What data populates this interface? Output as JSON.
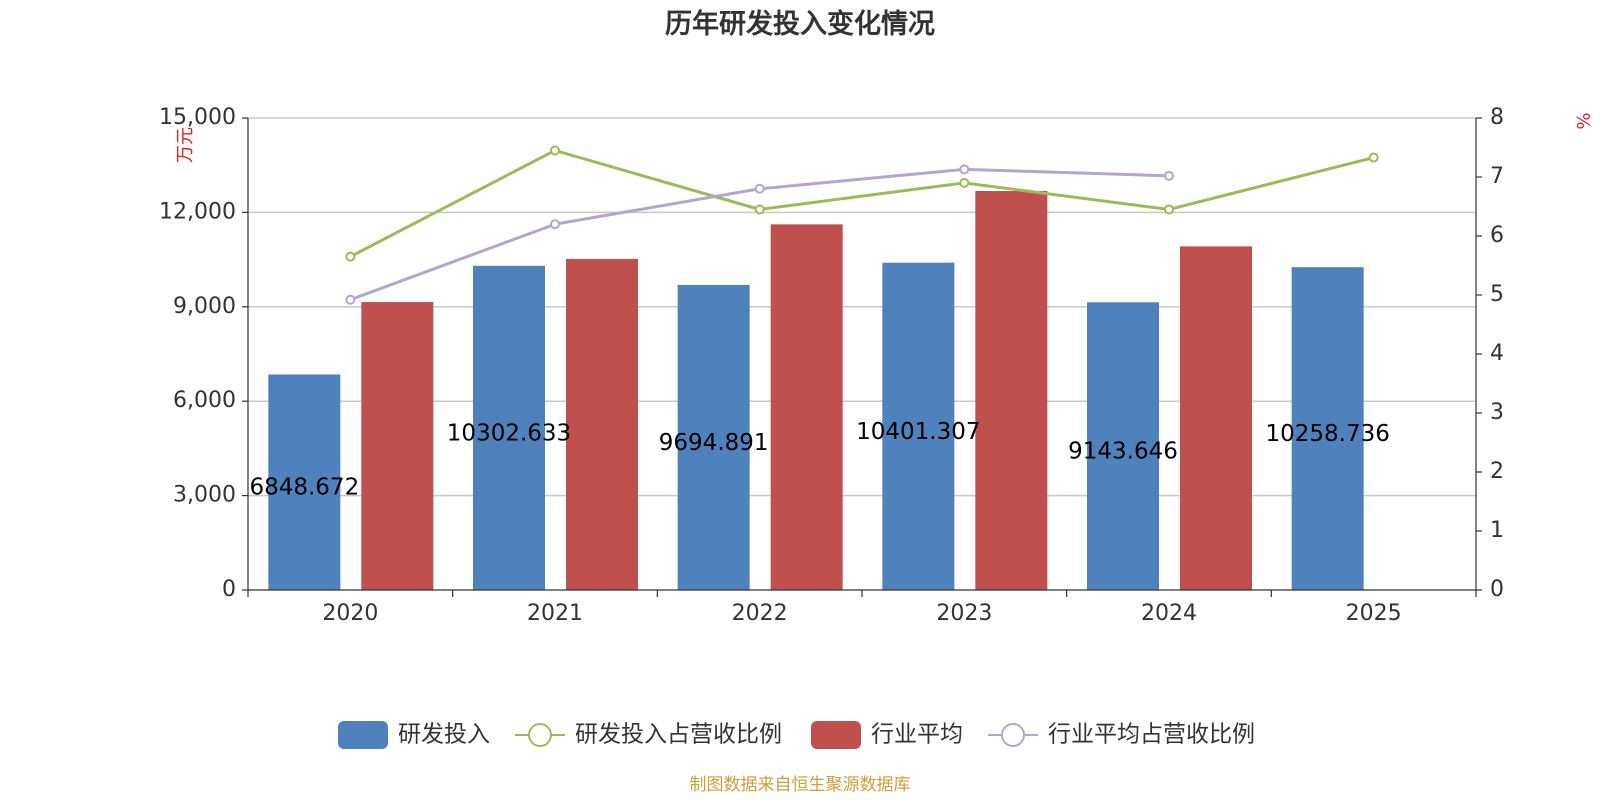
{
  "source": "制图数据来自恒生聚源数据库",
  "chart_data": {
    "type": "bar",
    "title": "历年研发投入变化情况",
    "categories": [
      "2020",
      "2021",
      "2022",
      "2023",
      "2024",
      "2025"
    ],
    "y_left": {
      "unit": "万元",
      "ticks": [
        "0",
        "3,000",
        "6,000",
        "9,000",
        "12,000",
        "15,000"
      ],
      "ylim": [
        0,
        15000
      ]
    },
    "y_right": {
      "unit": "%",
      "ticks": [
        "0",
        "1",
        "2",
        "3",
        "4",
        "5",
        "6",
        "7",
        "8"
      ],
      "ylim": [
        0,
        8
      ]
    },
    "grid": true,
    "legend_position": "bottom",
    "series": [
      {
        "name": "研发投入",
        "type": "bar",
        "axis": "left",
        "color": "#4f81bd",
        "values": [
          6848.672,
          10302.633,
          9694.891,
          10401.307,
          9143.646,
          10258.736
        ],
        "labels": [
          "6848.672",
          "10302.633",
          "9694.891",
          "10401.307",
          "9143.646",
          "10258.736"
        ]
      },
      {
        "name": "研发投入占营收比例",
        "type": "line",
        "axis": "right",
        "color": "#9bbb59",
        "values": [
          5.65,
          7.45,
          6.45,
          6.9,
          6.45,
          7.33
        ]
      },
      {
        "name": "行业平均",
        "type": "bar",
        "axis": "left",
        "color": "#c0504d",
        "values": [
          9150,
          10520,
          11620,
          12680,
          10920,
          null
        ]
      },
      {
        "name": "行业平均占营收比例",
        "type": "line",
        "axis": "right",
        "color": "#b3a5cf",
        "values": [
          4.92,
          6.2,
          6.8,
          7.13,
          7.02,
          null
        ]
      }
    ]
  }
}
